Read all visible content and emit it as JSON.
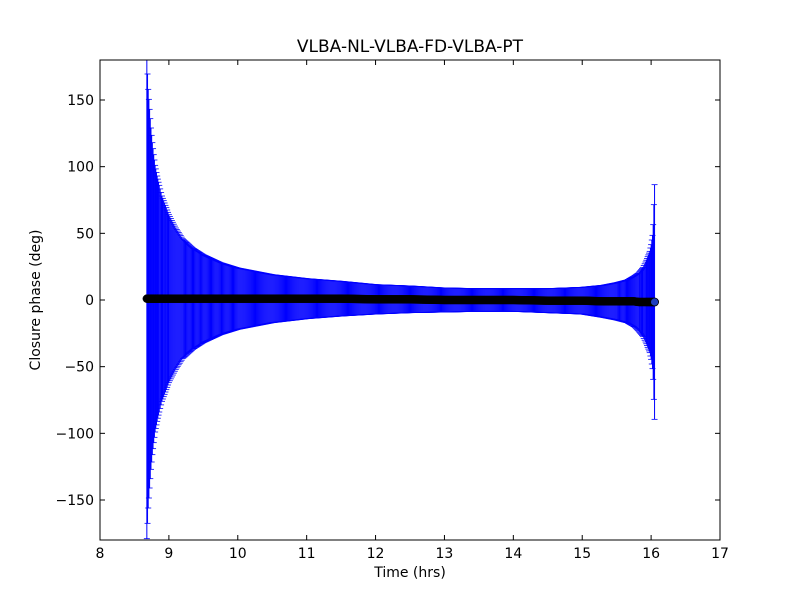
{
  "chart_data": {
    "type": "scatter",
    "title": "VLBA-NL-VLBA-FD-VLBA-PT",
    "xlabel": "Time (hrs)",
    "ylabel": "Closure phase (deg)",
    "xlim": [
      8,
      17
    ],
    "ylim": [
      -180,
      180
    ],
    "xticks": [
      8,
      9,
      10,
      11,
      12,
      13,
      14,
      15,
      16,
      17
    ],
    "yticks": [
      -150,
      -100,
      -50,
      0,
      50,
      100,
      150
    ],
    "xtick_labels": [
      "8",
      "9",
      "10",
      "11",
      "12",
      "13",
      "14",
      "15",
      "16",
      "17"
    ],
    "ytick_labels": [
      "−150",
      "−100",
      "−50",
      "0",
      "50",
      "100",
      "150"
    ],
    "grid": false,
    "legend": "none",
    "colors": {
      "errorbar": "#0000ff",
      "marker": "#000000"
    },
    "series": [
      {
        "points": [
          {
            "x": 8.68,
            "y": 1.0,
            "err": 180
          },
          {
            "x": 8.7,
            "y": 1.0,
            "err": 157
          },
          {
            "x": 8.72,
            "y": 1.0,
            "err": 142
          },
          {
            "x": 8.74,
            "y": 1.0,
            "err": 128
          },
          {
            "x": 8.76,
            "y": 1.0,
            "err": 117
          },
          {
            "x": 8.78,
            "y": 1.0,
            "err": 108
          },
          {
            "x": 8.8,
            "y": 1.0,
            "err": 100
          },
          {
            "x": 8.83,
            "y": 1.0,
            "err": 92
          },
          {
            "x": 8.86,
            "y": 1.0,
            "err": 85
          },
          {
            "x": 8.9,
            "y": 1.0,
            "err": 77
          },
          {
            "x": 8.95,
            "y": 1.0,
            "err": 70
          },
          {
            "x": 9.0,
            "y": 1.0,
            "err": 63
          },
          {
            "x": 9.1,
            "y": 1.0,
            "err": 53
          },
          {
            "x": 9.2,
            "y": 1.0,
            "err": 45
          },
          {
            "x": 9.35,
            "y": 1.0,
            "err": 38
          },
          {
            "x": 9.5,
            "y": 1.0,
            "err": 33
          },
          {
            "x": 9.75,
            "y": 1.0,
            "err": 27
          },
          {
            "x": 10.0,
            "y": 1.0,
            "err": 23
          },
          {
            "x": 10.5,
            "y": 1.0,
            "err": 18
          },
          {
            "x": 11.0,
            "y": 1.0,
            "err": 15
          },
          {
            "x": 11.5,
            "y": 1.0,
            "err": 13
          },
          {
            "x": 12.0,
            "y": 0.5,
            "err": 11
          },
          {
            "x": 12.5,
            "y": 0.5,
            "err": 10
          },
          {
            "x": 13.0,
            "y": 0.0,
            "err": 9
          },
          {
            "x": 13.5,
            "y": 0.0,
            "err": 8.5
          },
          {
            "x": 14.0,
            "y": 0.0,
            "err": 8.5
          },
          {
            "x": 14.5,
            "y": -0.5,
            "err": 9
          },
          {
            "x": 15.0,
            "y": -0.5,
            "err": 10
          },
          {
            "x": 15.3,
            "y": -1.0,
            "err": 12
          },
          {
            "x": 15.5,
            "y": -1.0,
            "err": 14
          },
          {
            "x": 15.65,
            "y": -1.0,
            "err": 16
          },
          {
            "x": 15.75,
            "y": -1.0,
            "err": 19
          },
          {
            "x": 15.82,
            "y": -1.5,
            "err": 22
          },
          {
            "x": 15.88,
            "y": -1.5,
            "err": 26
          },
          {
            "x": 15.92,
            "y": -1.5,
            "err": 30
          },
          {
            "x": 15.95,
            "y": -1.5,
            "err": 34
          },
          {
            "x": 15.98,
            "y": -1.5,
            "err": 38
          },
          {
            "x": 16.0,
            "y": -1.5,
            "err": 43
          },
          {
            "x": 16.02,
            "y": -1.5,
            "err": 50
          },
          {
            "x": 16.03,
            "y": -1.5,
            "err": 58
          },
          {
            "x": 16.05,
            "y": -1.5,
            "err": 88
          }
        ]
      }
    ]
  }
}
